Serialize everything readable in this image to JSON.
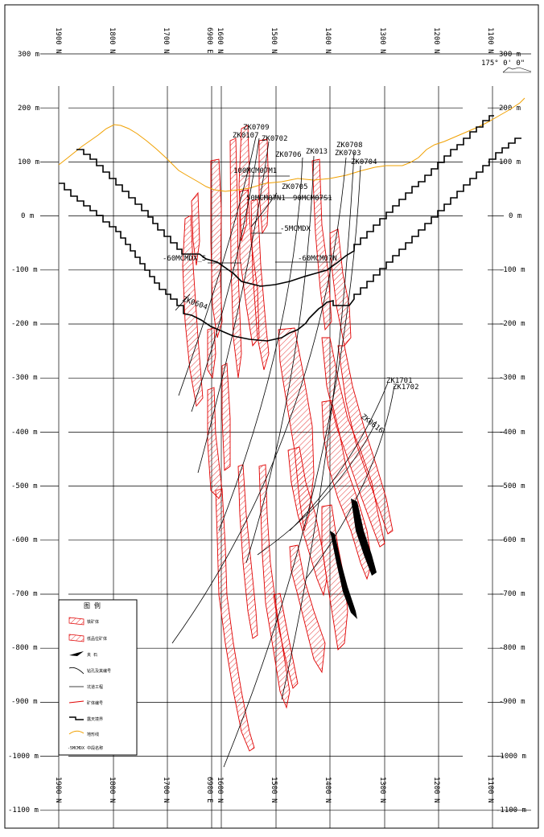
{
  "azimuth_label": "175° 0' 0\"",
  "elevation_labels": [
    "300 m",
    "200 m",
    "100 m",
    "0 m",
    "-100 m",
    "-200 m",
    "-300 m",
    "-400 m",
    "-500 m",
    "-600 m",
    "-700 m",
    "-800 m",
    "-900 m",
    "-1000 m",
    "-1100 m"
  ],
  "northing_labels": [
    "1900 N",
    "1800 N",
    "1700 N",
    "1600 N",
    "1500 N",
    "1400 N",
    "1300 N",
    "1200 N",
    "1100 N"
  ],
  "easting_label": "6900 E",
  "drillholes": [
    "ZK0709",
    "ZK0107",
    "ZK0702",
    "ZK0706",
    "ZK013",
    "ZK0708",
    "ZK0703",
    "ZK0704",
    "ZK0705",
    "ZK1701",
    "ZK1702",
    "ZK0616",
    "ZK0604"
  ],
  "level_labels": [
    "100MCM07M1",
    "50MCM07N1",
    "90MCM07S1",
    "-5MCMDX",
    "-60MCMDX_S",
    "-60MCM07N"
  ],
  "legend": {
    "title": "图  例",
    "items": [
      "铁矿体",
      "低品位矿体",
      "夹 石",
      "钻孔及其编号",
      "坑道工程",
      "矿体编号",
      "露天境界",
      "地形线",
      "-5MCMDX 中段名称"
    ]
  }
}
